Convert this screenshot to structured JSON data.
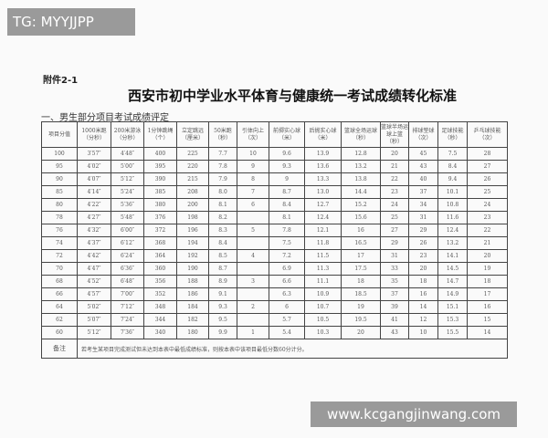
{
  "watermark_top": "TG: MYYJJPP",
  "watermark_bottom": "www.kcgangjinwang.com",
  "attachment": "附件2-1",
  "title": "西安市初中学业水平体育与健康统一考试成绩转化标准",
  "subtitle": "一、男生部分项目考试成绩评定",
  "headers": [
    "项目分值",
    "1000米跑（分秒）",
    "200米游泳（分秒）",
    "1分钟跳绳（个）",
    "立定跳远（厘米）",
    "50米跑（秒）",
    "引体向上（次）",
    "前掷实心球（米）",
    "后抛实心球（米）",
    "篮球全场运球（秒）",
    "篮球半场运球上篮（秒）",
    "排球垫球（次）",
    "足球技能（秒）",
    "乒乓球技能（次）"
  ],
  "rows": [
    [
      "100",
      "3′57″",
      "4′48″",
      "400",
      "225",
      "7.7",
      "10",
      "9.6",
      "13.9",
      "12.8",
      "20",
      "45",
      "7.5",
      "28"
    ],
    [
      "95",
      "4′02″",
      "5′00″",
      "395",
      "220",
      "7.8",
      "9",
      "9.3",
      "13.6",
      "13.2",
      "21",
      "43",
      "8.4",
      "27"
    ],
    [
      "90",
      "4′07″",
      "5′12″",
      "390",
      "215",
      "7.9",
      "8",
      "9",
      "13.3",
      "13.8",
      "22",
      "40",
      "9.4",
      "26"
    ],
    [
      "85",
      "4′14″",
      "5′24″",
      "385",
      "208",
      "8.0",
      "7",
      "8.7",
      "13.0",
      "14.4",
      "23",
      "37",
      "10.1",
      "25"
    ],
    [
      "80",
      "4′22″",
      "5′36″",
      "380",
      "200",
      "8.1",
      "6",
      "8.4",
      "12.7",
      "15.2",
      "24",
      "34",
      "10.8",
      "24"
    ],
    [
      "78",
      "4′27″",
      "5′48″",
      "376",
      "198",
      "8.2",
      "",
      "8.1",
      "12.4",
      "15.6",
      "25",
      "31",
      "11.6",
      "23"
    ],
    [
      "76",
      "4′32″",
      "6′00″",
      "372",
      "196",
      "8.3",
      "5",
      "7.8",
      "12.1",
      "16",
      "27",
      "29",
      "12.4",
      "22"
    ],
    [
      "74",
      "4′37″",
      "6′12″",
      "368",
      "194",
      "8.4",
      "",
      "7.5",
      "11.8",
      "16.5",
      "29",
      "26",
      "13.2",
      "21"
    ],
    [
      "72",
      "4′42″",
      "6′24″",
      "364",
      "192",
      "8.5",
      "4",
      "7.2",
      "11.5",
      "17",
      "31",
      "23",
      "14.1",
      "20"
    ],
    [
      "70",
      "4′47″",
      "6′36″",
      "360",
      "190",
      "8.7",
      "",
      "6.9",
      "11.3",
      "17.5",
      "33",
      "20",
      "14.5",
      "19"
    ],
    [
      "68",
      "4′52″",
      "6′48″",
      "356",
      "188",
      "8.9",
      "3",
      "6.6",
      "11.1",
      "18",
      "35",
      "18",
      "14.7",
      "18"
    ],
    [
      "66",
      "4′57″",
      "7′00″",
      "352",
      "186",
      "9.1",
      "",
      "6.3",
      "10.9",
      "18.5",
      "37",
      "16",
      "14.9",
      "17"
    ],
    [
      "64",
      "5′02″",
      "7′12″",
      "348",
      "184",
      "9.3",
      "2",
      "6",
      "10.7",
      "19",
      "39",
      "14",
      "15.1",
      "16"
    ],
    [
      "62",
      "5′07″",
      "7′24″",
      "344",
      "182",
      "9.5",
      "",
      "5.7",
      "10.5",
      "19.5",
      "41",
      "12",
      "15.3",
      "15"
    ],
    [
      "60",
      "5′12″",
      "7′36″",
      "340",
      "180",
      "9.9",
      "1",
      "5.4",
      "10.3",
      "20",
      "43",
      "10",
      "15.5",
      "14"
    ]
  ],
  "note_label": "备注",
  "note_text": "若考生某项目完成测试但未达到本表中最低成绩标准，则按本表中该项目最低分数60分计分。"
}
